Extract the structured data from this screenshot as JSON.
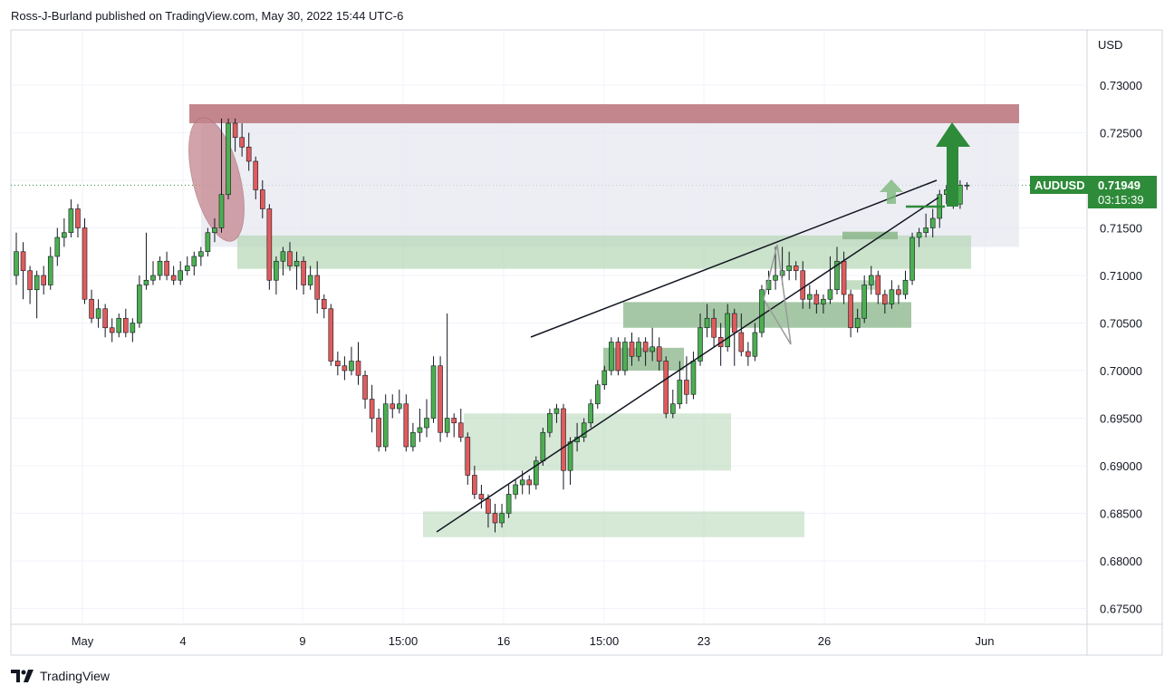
{
  "header": {
    "text": "Ross-J-Burland published on TradingView.com, May 30, 2022 15:44 UTC-6"
  },
  "footer": {
    "brand": "TradingView"
  },
  "colors": {
    "up": "#26a69a",
    "down": "#ef5350",
    "up_body": "#4caf50",
    "down_body": "#e05c5c",
    "resistance_zone": "#c4868d",
    "range_zone": "#e7e7f0",
    "demand_zone": "#b5d6b5",
    "demand_zone_dark": "#8fb98f",
    "arrow": "#2e8b3a",
    "line": "#131722",
    "grid": "#f0f3fa"
  },
  "chart_data": {
    "type": "candlestick",
    "symbol": "AUDUSD",
    "currency_label": "USD",
    "last_price": "0.71949",
    "countdown": "03:15:39",
    "ylim": [
      0.671,
      0.738
    ],
    "y_ticks": [
      "0.73000",
      "0.72500",
      "0.72000",
      "0.71500",
      "0.71000",
      "0.70500",
      "0.70000",
      "0.69500",
      "0.69000",
      "0.68500",
      "0.68000",
      "0.67500"
    ],
    "x_ticks": [
      "May",
      "4",
      "9",
      "15:00",
      "16",
      "15:00",
      "23",
      "26",
      "Jun"
    ],
    "bar_count": 137,
    "candles": [
      [
        0.71,
        0.7125,
        0.709,
        0.7145
      ],
      [
        0.7125,
        0.7105,
        0.7075,
        0.7135
      ],
      [
        0.7105,
        0.7085,
        0.707,
        0.711
      ],
      [
        0.7085,
        0.71,
        0.7055,
        0.7105
      ],
      [
        0.71,
        0.709,
        0.708,
        0.711
      ],
      [
        0.709,
        0.712,
        0.7085,
        0.713
      ],
      [
        0.712,
        0.714,
        0.711,
        0.715
      ],
      [
        0.714,
        0.7145,
        0.713,
        0.716
      ],
      [
        0.7145,
        0.717,
        0.714,
        0.718
      ],
      [
        0.717,
        0.715,
        0.714,
        0.7175
      ],
      [
        0.715,
        0.7075,
        0.707,
        0.716
      ],
      [
        0.7075,
        0.7055,
        0.705,
        0.7085
      ],
      [
        0.7055,
        0.7065,
        0.7045,
        0.7075
      ],
      [
        0.7065,
        0.7045,
        0.7035,
        0.707
      ],
      [
        0.7045,
        0.704,
        0.703,
        0.7055
      ],
      [
        0.704,
        0.7055,
        0.7035,
        0.706
      ],
      [
        0.7055,
        0.704,
        0.7035,
        0.7065
      ],
      [
        0.704,
        0.705,
        0.703,
        0.7055
      ],
      [
        0.705,
        0.709,
        0.7045,
        0.71
      ],
      [
        0.709,
        0.7095,
        0.7085,
        0.7145
      ],
      [
        0.7095,
        0.71,
        0.709,
        0.7115
      ],
      [
        0.71,
        0.7115,
        0.7095,
        0.712
      ],
      [
        0.7115,
        0.71,
        0.7095,
        0.7125
      ],
      [
        0.71,
        0.7095,
        0.709,
        0.711
      ],
      [
        0.7095,
        0.7105,
        0.709,
        0.7115
      ],
      [
        0.7105,
        0.711,
        0.71,
        0.712
      ],
      [
        0.711,
        0.712,
        0.71,
        0.7125
      ],
      [
        0.712,
        0.7125,
        0.711,
        0.713
      ],
      [
        0.7125,
        0.7145,
        0.712,
        0.715
      ],
      [
        0.7145,
        0.715,
        0.7135,
        0.716
      ],
      [
        0.715,
        0.7185,
        0.7145,
        0.7265
      ],
      [
        0.7185,
        0.726,
        0.718,
        0.7265
      ],
      [
        0.726,
        0.7245,
        0.723,
        0.7265
      ],
      [
        0.7245,
        0.7235,
        0.7225,
        0.726
      ],
      [
        0.7235,
        0.722,
        0.721,
        0.725
      ],
      [
        0.722,
        0.719,
        0.718,
        0.7225
      ],
      [
        0.719,
        0.717,
        0.716,
        0.72
      ],
      [
        0.717,
        0.7095,
        0.7085,
        0.7175
      ],
      [
        0.7095,
        0.7115,
        0.708,
        0.712
      ],
      [
        0.7115,
        0.7125,
        0.71,
        0.713
      ],
      [
        0.7125,
        0.711,
        0.7105,
        0.7135
      ],
      [
        0.711,
        0.7115,
        0.7085,
        0.7125
      ],
      [
        0.7115,
        0.709,
        0.708,
        0.712
      ],
      [
        0.709,
        0.71,
        0.7085,
        0.711
      ],
      [
        0.71,
        0.7075,
        0.706,
        0.7115
      ],
      [
        0.7075,
        0.7065,
        0.7055,
        0.708
      ],
      [
        0.7065,
        0.701,
        0.7005,
        0.707
      ],
      [
        0.701,
        0.7005,
        0.6995,
        0.702
      ],
      [
        0.7005,
        0.7,
        0.699,
        0.7015
      ],
      [
        0.7,
        0.701,
        0.6995,
        0.7025
      ],
      [
        0.701,
        0.6995,
        0.6985,
        0.703
      ],
      [
        0.6995,
        0.697,
        0.696,
        0.7
      ],
      [
        0.697,
        0.695,
        0.6935,
        0.6985
      ],
      [
        0.695,
        0.692,
        0.6915,
        0.696
      ],
      [
        0.692,
        0.6965,
        0.6915,
        0.6975
      ],
      [
        0.6965,
        0.696,
        0.695,
        0.6975
      ],
      [
        0.696,
        0.6965,
        0.6955,
        0.698
      ],
      [
        0.6965,
        0.692,
        0.6915,
        0.6975
      ],
      [
        0.692,
        0.6935,
        0.6915,
        0.6945
      ],
      [
        0.6935,
        0.694,
        0.6925,
        0.696
      ],
      [
        0.694,
        0.695,
        0.693,
        0.697
      ],
      [
        0.695,
        0.7005,
        0.6945,
        0.7015
      ],
      [
        0.7005,
        0.6935,
        0.6925,
        0.7015
      ],
      [
        0.6935,
        0.695,
        0.693,
        0.706
      ],
      [
        0.695,
        0.6945,
        0.693,
        0.6955
      ],
      [
        0.6945,
        0.693,
        0.6925,
        0.696
      ],
      [
        0.693,
        0.689,
        0.688,
        0.6935
      ],
      [
        0.689,
        0.687,
        0.6865,
        0.69
      ],
      [
        0.687,
        0.6865,
        0.6855,
        0.688
      ],
      [
        0.6865,
        0.685,
        0.6835,
        0.687
      ],
      [
        0.685,
        0.684,
        0.683,
        0.686
      ],
      [
        0.684,
        0.685,
        0.6835,
        0.686
      ],
      [
        0.685,
        0.687,
        0.6845,
        0.688
      ],
      [
        0.687,
        0.688,
        0.6865,
        0.6885
      ],
      [
        0.688,
        0.6885,
        0.687,
        0.6895
      ],
      [
        0.6885,
        0.688,
        0.687,
        0.689
      ],
      [
        0.688,
        0.6905,
        0.6875,
        0.691
      ],
      [
        0.6905,
        0.6935,
        0.69,
        0.694
      ],
      [
        0.6935,
        0.6955,
        0.693,
        0.696
      ],
      [
        0.6955,
        0.696,
        0.6945,
        0.6965
      ],
      [
        0.696,
        0.6895,
        0.6875,
        0.6965
      ],
      [
        0.6895,
        0.6925,
        0.688,
        0.693
      ],
      [
        0.6925,
        0.693,
        0.6915,
        0.6945
      ],
      [
        0.693,
        0.6945,
        0.6925,
        0.695
      ],
      [
        0.6945,
        0.6965,
        0.694,
        0.697
      ],
      [
        0.6965,
        0.6985,
        0.696,
        0.699
      ],
      [
        0.6985,
        0.7,
        0.698,
        0.7005
      ],
      [
        0.7,
        0.703,
        0.6995,
        0.7035
      ],
      [
        0.703,
        0.7,
        0.6995,
        0.7035
      ],
      [
        0.7,
        0.703,
        0.6995,
        0.7035
      ],
      [
        0.703,
        0.7015,
        0.7005,
        0.704
      ],
      [
        0.7015,
        0.703,
        0.701,
        0.7035
      ],
      [
        0.703,
        0.702,
        0.7005,
        0.7035
      ],
      [
        0.702,
        0.7025,
        0.701,
        0.7045
      ],
      [
        0.7025,
        0.701,
        0.7,
        0.7035
      ],
      [
        0.701,
        0.6955,
        0.695,
        0.7015
      ],
      [
        0.6955,
        0.6965,
        0.695,
        0.698
      ],
      [
        0.6965,
        0.699,
        0.696,
        0.701
      ],
      [
        0.699,
        0.6975,
        0.6965,
        0.7015
      ],
      [
        0.6975,
        0.701,
        0.697,
        0.702
      ],
      [
        0.701,
        0.7045,
        0.7005,
        0.706
      ],
      [
        0.7045,
        0.7055,
        0.7035,
        0.707
      ],
      [
        0.7055,
        0.7035,
        0.7025,
        0.7065
      ],
      [
        0.7035,
        0.7025,
        0.7005,
        0.705
      ],
      [
        0.7025,
        0.706,
        0.702,
        0.707
      ],
      [
        0.706,
        0.704,
        0.7005,
        0.7065
      ],
      [
        0.704,
        0.702,
        0.7015,
        0.706
      ],
      [
        0.702,
        0.7015,
        0.7005,
        0.703
      ],
      [
        0.7015,
        0.704,
        0.701,
        0.705
      ],
      [
        0.704,
        0.7085,
        0.7035,
        0.709
      ],
      [
        0.7085,
        0.7095,
        0.708,
        0.7105
      ],
      [
        0.7095,
        0.71,
        0.7085,
        0.713
      ],
      [
        0.71,
        0.7105,
        0.709,
        0.713
      ],
      [
        0.7105,
        0.711,
        0.7095,
        0.7125
      ],
      [
        0.711,
        0.7105,
        0.7095,
        0.7115
      ],
      [
        0.7105,
        0.7075,
        0.7065,
        0.7115
      ],
      [
        0.7075,
        0.708,
        0.7065,
        0.709
      ],
      [
        0.708,
        0.707,
        0.706,
        0.7085
      ],
      [
        0.707,
        0.7075,
        0.706,
        0.708
      ],
      [
        0.7075,
        0.7085,
        0.707,
        0.712
      ],
      [
        0.7085,
        0.7115,
        0.708,
        0.713
      ],
      [
        0.7115,
        0.708,
        0.707,
        0.7125
      ],
      [
        0.708,
        0.7045,
        0.7035,
        0.7085
      ],
      [
        0.7045,
        0.7055,
        0.704,
        0.7065
      ],
      [
        0.7055,
        0.709,
        0.705,
        0.71
      ],
      [
        0.709,
        0.71,
        0.708,
        0.711
      ],
      [
        0.71,
        0.708,
        0.707,
        0.7105
      ],
      [
        0.708,
        0.707,
        0.706,
        0.7085
      ],
      [
        0.707,
        0.7085,
        0.7065,
        0.7095
      ],
      [
        0.7085,
        0.708,
        0.707,
        0.709
      ],
      [
        0.708,
        0.7095,
        0.7075,
        0.7105
      ],
      [
        0.7095,
        0.714,
        0.709,
        0.7145
      ],
      [
        0.714,
        0.7145,
        0.713,
        0.715
      ],
      [
        0.7145,
        0.715,
        0.714,
        0.7165
      ]
    ],
    "tail_candles": [
      [
        0.715,
        0.716,
        0.714,
        0.717
      ],
      [
        0.716,
        0.7185,
        0.715,
        0.719
      ],
      [
        0.7185,
        0.719,
        0.7175,
        0.7195
      ],
      [
        0.719,
        0.7175,
        0.717,
        0.7195
      ],
      [
        0.7175,
        0.7195,
        0.717,
        0.72
      ],
      [
        0.7195,
        0.7195,
        0.719,
        0.7198
      ]
    ],
    "series": [
      {
        "name": "AUDUSD"
      }
    ]
  }
}
